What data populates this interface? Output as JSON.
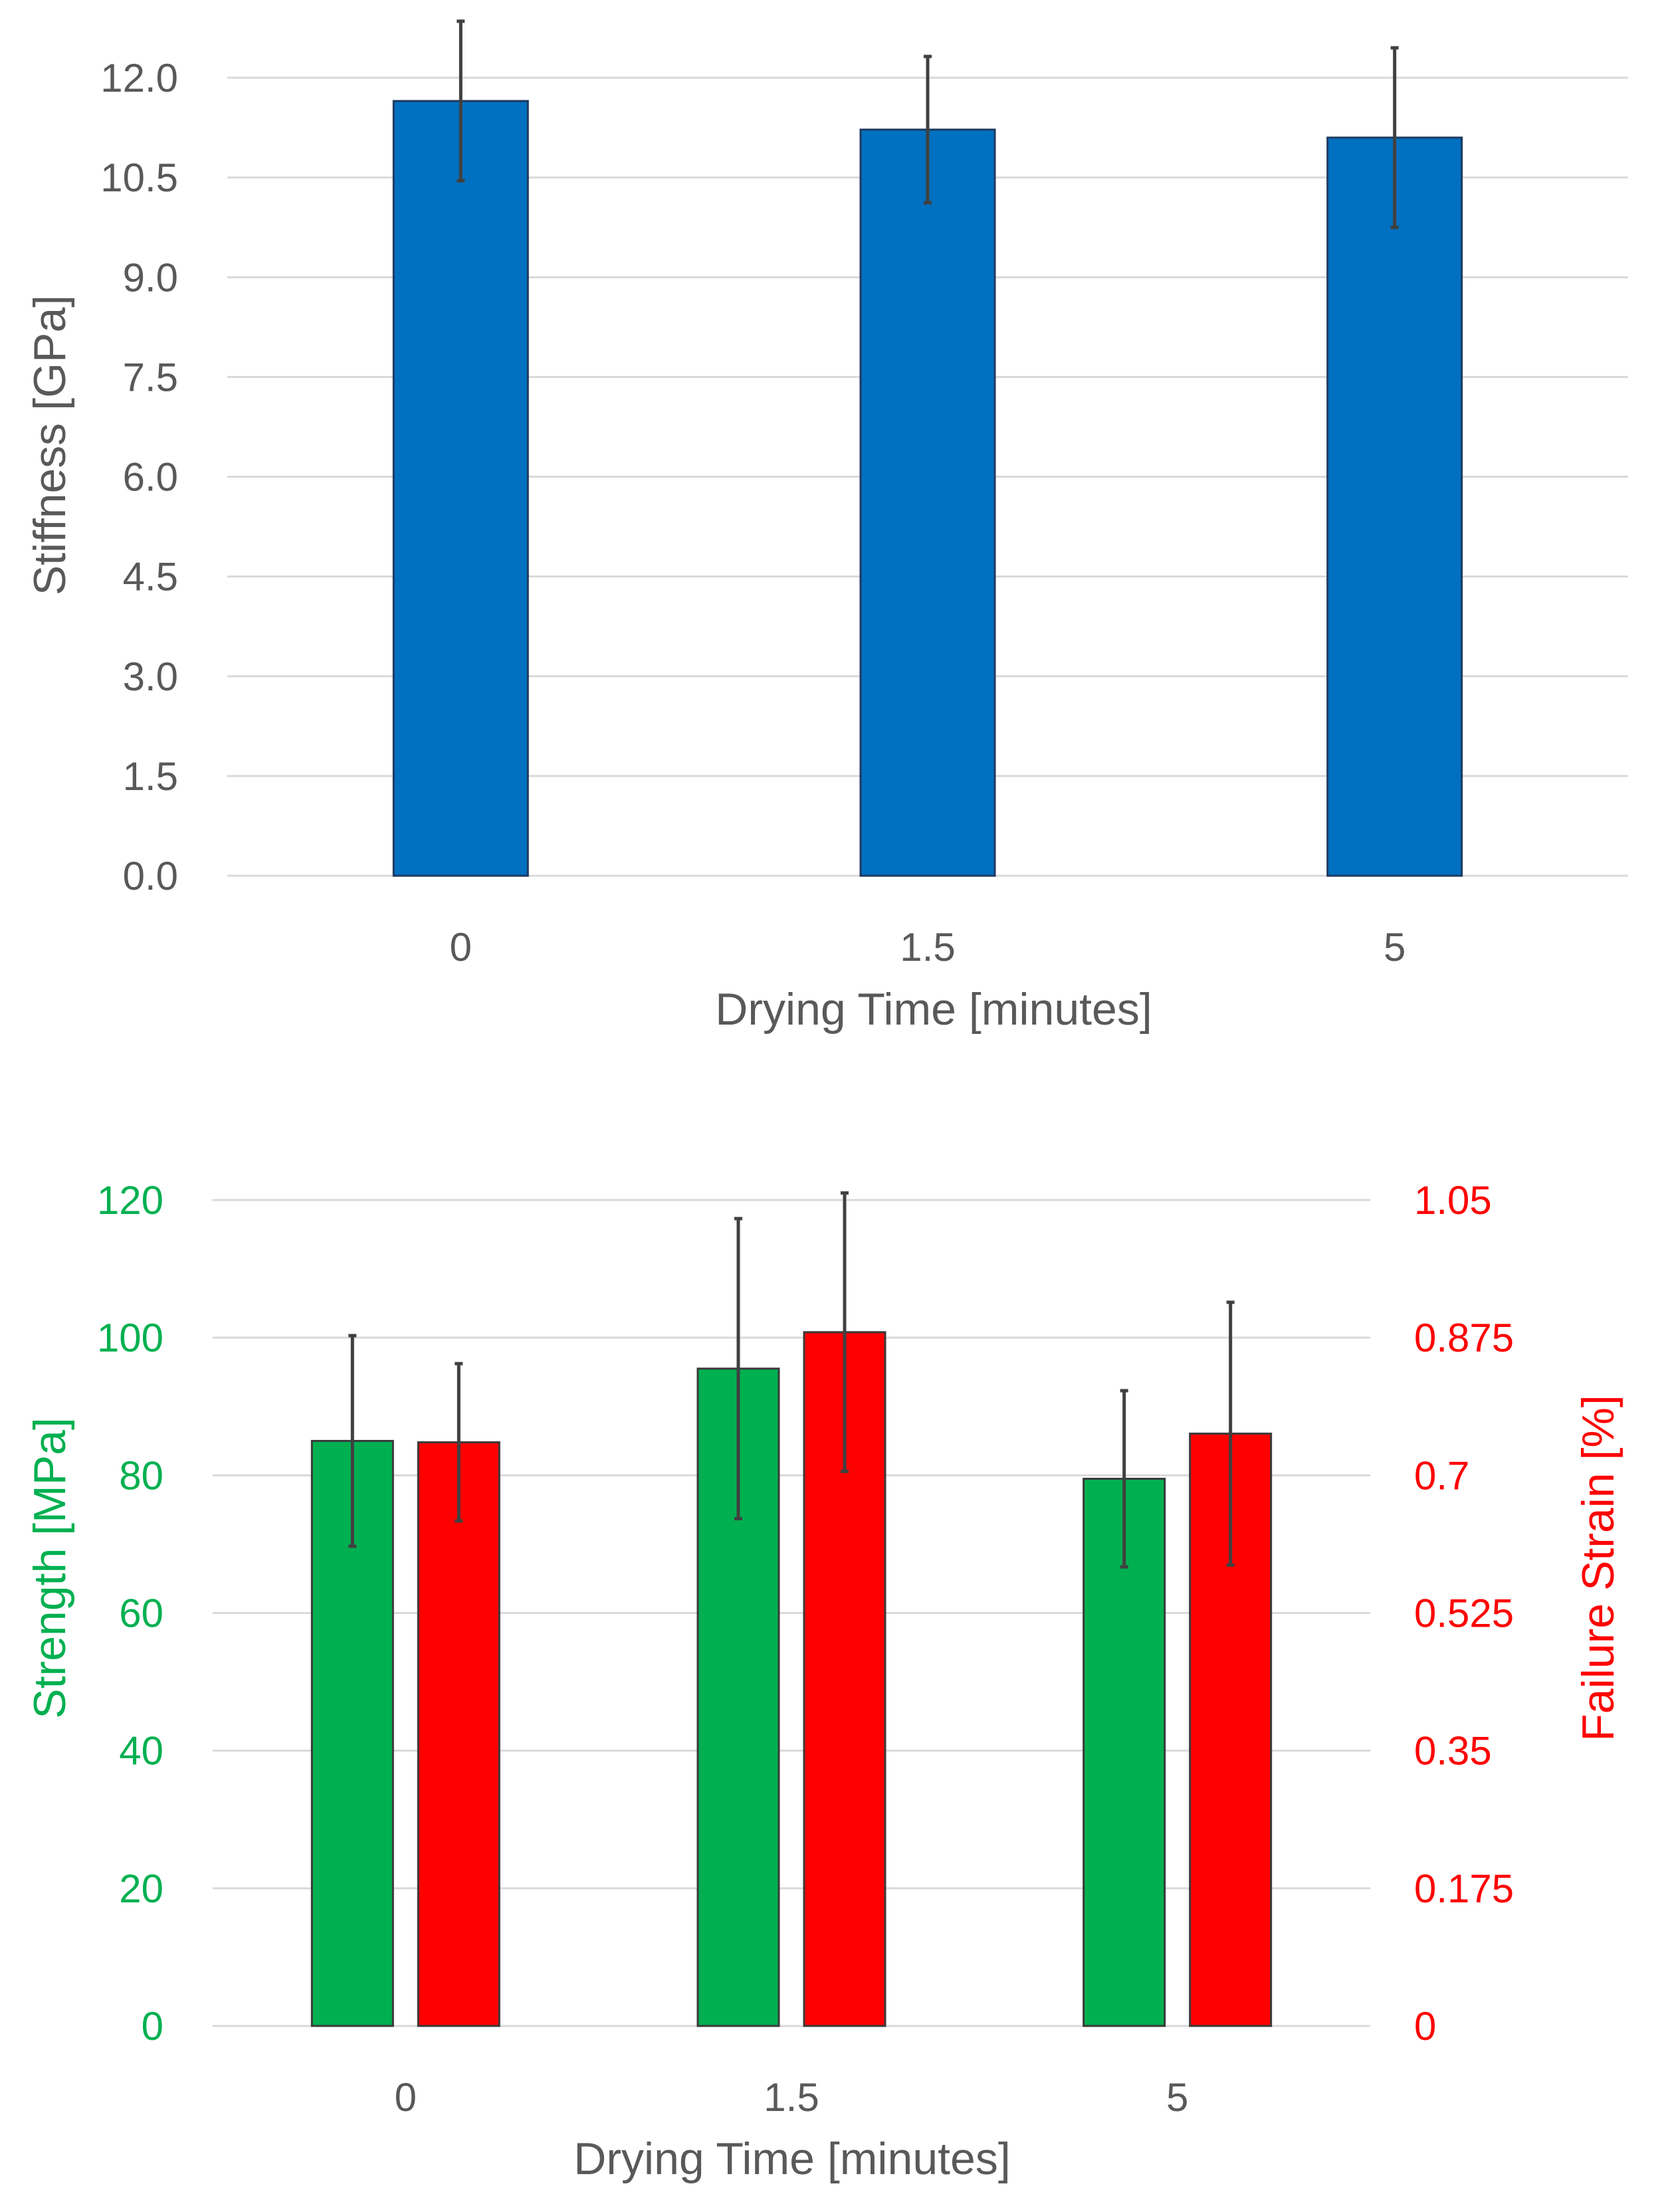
{
  "chart_data": [
    {
      "type": "bar",
      "title": "",
      "xlabel": "Drying Time [minutes]",
      "ylabel": "Stiffness [GPa]",
      "categories": [
        "0",
        "1.5",
        "5"
      ],
      "ylim": [
        0,
        12
      ],
      "yticks": [
        "0.0",
        "1.5",
        "3.0",
        "4.5",
        "6.0",
        "7.5",
        "9.0",
        "10.5",
        "12.0"
      ],
      "grid": true,
      "series": [
        {
          "name": "Stiffness",
          "color": "#0070C0",
          "values": [
            11.65,
            11.22,
            11.1
          ],
          "error": [
            1.2,
            1.1,
            1.35
          ]
        }
      ]
    },
    {
      "type": "bar",
      "title": "",
      "xlabel": "Drying Time [minutes]",
      "categories": [
        "0",
        "1.5",
        "5"
      ],
      "grid": true,
      "left_axis": {
        "label": "Strength [MPa]",
        "color": "#00B050",
        "ylim": [
          0,
          120
        ],
        "yticks": [
          "0",
          "20",
          "40",
          "60",
          "80",
          "100",
          "120"
        ]
      },
      "right_axis": {
        "label": "Failure Strain [%]",
        "color": "#FF0000",
        "ylim": [
          0,
          1.05
        ],
        "yticks": [
          "0",
          "0.175",
          "0.35",
          "0.525",
          "0.7",
          "0.875",
          "1.05"
        ]
      },
      "series": [
        {
          "name": "Strength",
          "axis": "left",
          "color": "#00B050",
          "values": [
            85,
            95.5,
            79.5
          ],
          "error": [
            15.3,
            21.8,
            12.8
          ]
        },
        {
          "name": "Failure Strain",
          "axis": "right",
          "color": "#FF0000",
          "values": [
            0.742,
            0.882,
            0.753
          ],
          "error": [
            0.1,
            0.177,
            0.167
          ]
        }
      ]
    }
  ]
}
